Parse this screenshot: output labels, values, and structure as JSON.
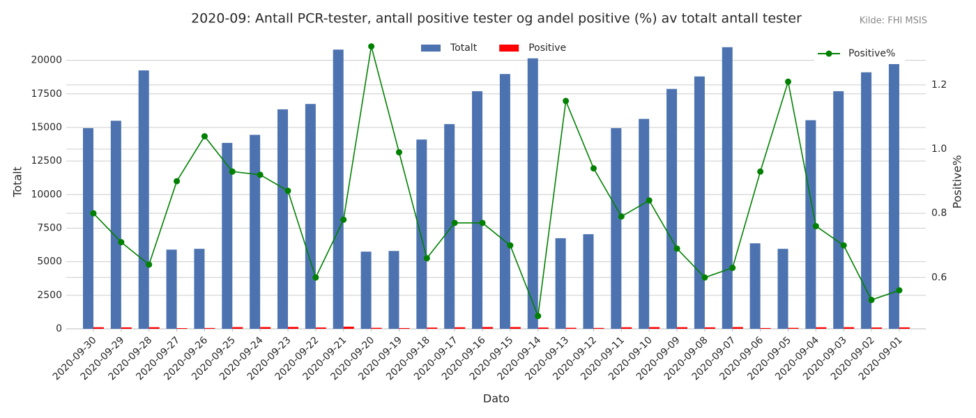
{
  "chart_data": {
    "type": "bar_line",
    "title": "2020-09: Antall PCR-tester, antall positive tester og andel positive (%) av totalt antall tester",
    "source": "Kilde: FHI MSIS",
    "x_label": "Dato",
    "y_label": "Totalt",
    "y2_label": "Positive%",
    "categories": [
      "2020-09-30",
      "2020-09-29",
      "2020-09-28",
      "2020-09-27",
      "2020-09-26",
      "2020-09-25",
      "2020-09-24",
      "2020-09-23",
      "2020-09-22",
      "2020-09-21",
      "2020-09-20",
      "2020-09-19",
      "2020-09-18",
      "2020-09-17",
      "2020-09-16",
      "2020-09-15",
      "2020-09-14",
      "2020-09-13",
      "2020-09-12",
      "2020-09-11",
      "2020-09-10",
      "2020-09-09",
      "2020-09-08",
      "2020-09-07",
      "2020-09-06",
      "2020-09-05",
      "2020-09-04",
      "2020-09-03",
      "2020-09-02",
      "2020-09-01"
    ],
    "series": [
      {
        "name": "Totalt",
        "type": "bar",
        "color": "#4c72b0",
        "values": [
          14950,
          15500,
          19250,
          5900,
          5960,
          13850,
          14450,
          16350,
          16750,
          20800,
          5750,
          5800,
          14100,
          15250,
          17700,
          18980,
          20150,
          6750,
          7050,
          14950,
          15640,
          17870,
          18800,
          20980,
          6370,
          5960,
          15540,
          17700,
          19110,
          19740
        ]
      },
      {
        "name": "Positive",
        "type": "bar",
        "color": "#ff0000",
        "values": [
          120,
          110,
          123,
          53,
          62,
          129,
          133,
          142,
          101,
          162,
          76,
          57,
          93,
          117,
          136,
          133,
          97,
          78,
          66,
          118,
          131,
          123,
          113,
          132,
          59,
          72,
          118,
          124,
          101,
          111
        ]
      },
      {
        "name": "Positive%",
        "type": "line",
        "axis": "y2",
        "color": "#008000",
        "values": [
          0.8,
          0.71,
          0.64,
          0.9,
          1.04,
          0.93,
          0.92,
          0.87,
          0.6,
          0.78,
          1.32,
          0.99,
          0.66,
          0.77,
          0.77,
          0.7,
          0.48,
          1.15,
          0.94,
          0.79,
          0.84,
          0.69,
          0.6,
          0.63,
          0.93,
          1.21,
          0.76,
          0.7,
          0.53,
          0.56
        ]
      }
    ],
    "ylim": [
      0,
      21900
    ],
    "yticks": [
      0,
      2500,
      5000,
      7500,
      10000,
      12500,
      15000,
      17500,
      20000
    ],
    "y2lim": [
      0.44,
      1.356
    ],
    "y2ticks": [
      0.6,
      0.8,
      {
        "value": 1,
        "label": "1.0"
      },
      1.2
    ],
    "grid": true
  }
}
